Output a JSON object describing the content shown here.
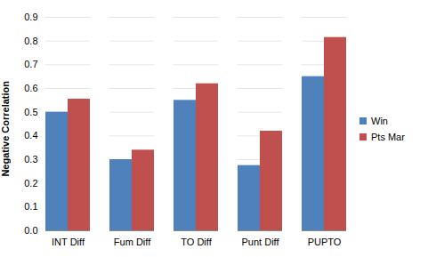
{
  "chart_data": {
    "type": "bar",
    "categories": [
      "INT Diff",
      "Fum Diff",
      "TO Diff",
      "Punt Diff",
      "PUPTO"
    ],
    "series": [
      {
        "name": "Win",
        "color": "#4f81bd",
        "values": [
          0.5,
          0.3,
          0.55,
          0.275,
          0.65
        ]
      },
      {
        "name": "Pts Mar",
        "color": "#c0504d",
        "values": [
          0.555,
          0.34,
          0.62,
          0.42,
          0.815
        ]
      }
    ],
    "y_label": "Negative Correlation",
    "ylim": [
      0,
      0.9
    ],
    "yticks": [
      0,
      0.1,
      0.2,
      0.3,
      0.4,
      0.5,
      0.6,
      0.7,
      0.8,
      0.9
    ],
    "grid": true,
    "legend": "right"
  }
}
